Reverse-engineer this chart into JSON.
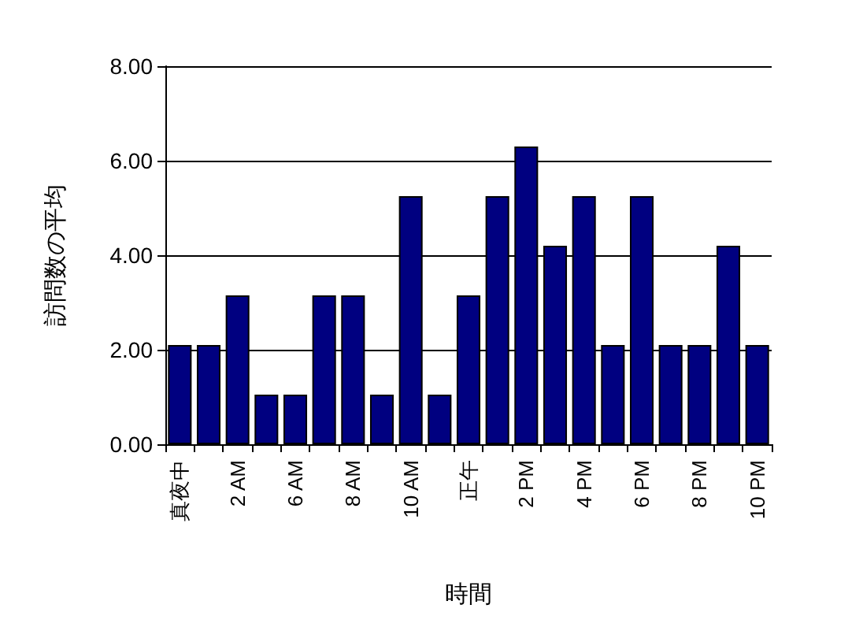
{
  "chart_data": {
    "type": "bar",
    "xlabel": "時間",
    "ylabel": "訪問数の平均",
    "categories": [
      "真夜中",
      null,
      "2 AM",
      null,
      "6 AM",
      null,
      "8 AM",
      null,
      "10 AM",
      null,
      "正午",
      null,
      "2 PM",
      null,
      "4 PM",
      null,
      "6 PM",
      null,
      "8 PM",
      null,
      "10 PM"
    ],
    "values": [
      2.1,
      2.1,
      3.15,
      1.05,
      1.05,
      3.15,
      3.15,
      1.05,
      5.25,
      1.05,
      3.15,
      5.25,
      6.3,
      4.2,
      5.25,
      2.1,
      5.25,
      2.1,
      2.1,
      4.2,
      2.1
    ],
    "color": "#000080",
    "ylim": [
      0,
      8
    ],
    "yticks": [
      {
        "value": 0,
        "label": "0.00"
      },
      {
        "value": 2,
        "label": "2.00"
      },
      {
        "value": 4,
        "label": "4.00"
      },
      {
        "value": 6,
        "label": "6.00"
      },
      {
        "value": 8,
        "label": "8.00"
      }
    ],
    "grid": "y"
  }
}
